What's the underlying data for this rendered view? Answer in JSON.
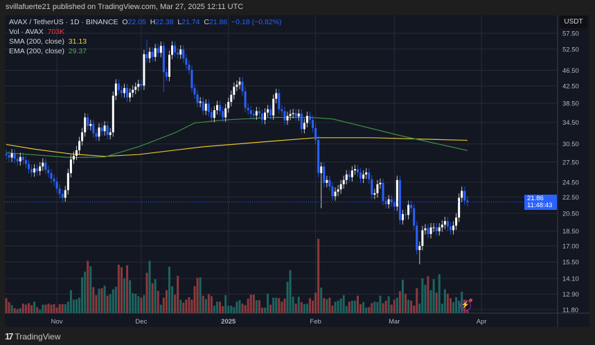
{
  "header": {
    "published": "svillafuerte21 published on TradingView.com, Mar 27, 2025 12:11 UTC"
  },
  "legend": {
    "symbol": "AVAX / TetherUS · 1D · BINANCE",
    "o_label": "O",
    "o": "22.05",
    "h_label": "H",
    "h": "22.38",
    "l_label": "L",
    "l": "21.74",
    "c_label": "C",
    "c": "21.86",
    "change": "−0.18 (−0.82%)",
    "vol_label": "Vol · AVAX",
    "vol": "703K",
    "sma_label": "SMA (200, close)",
    "sma": "31.13",
    "ema_label": "EMA (200, close)",
    "ema": "29.37"
  },
  "price_axis": {
    "currency": "USDT",
    "current_price": "21.86",
    "countdown": "11:48:43"
  },
  "footer": {
    "brand": "TradingView"
  },
  "colors": {
    "up": "#ffffff",
    "down": "#2962ff",
    "vol_up": "#1d6560",
    "vol_down": "#8c3a3e",
    "sma": "#e8c62a",
    "ema": "#3d8f45",
    "background": "#131722",
    "grid": "#262b38"
  },
  "chart_data": {
    "type": "candlestick",
    "scale": "log",
    "ylim": [
      11.0,
      60.0
    ],
    "grid": true,
    "start_date": "2024-10-14",
    "end_date": "2025-03-27",
    "y_ticks": [
      "57.50",
      "52.50",
      "46.50",
      "42.50",
      "38.50",
      "34.50",
      "30.50",
      "27.50",
      "24.50",
      "22.50",
      "20.50",
      "18.50",
      "17.00",
      "15.50",
      "14.10",
      "12.90",
      "11.80"
    ],
    "x_ticks": [
      {
        "label": "Nov",
        "date": "2024-11-01"
      },
      {
        "label": "Dec",
        "date": "2024-12-01"
      },
      {
        "label": "2025",
        "date": "2025-01-01"
      },
      {
        "label": "Feb",
        "date": "2025-02-01"
      },
      {
        "label": "Mar",
        "date": "2025-03-01"
      },
      {
        "label": "Apr",
        "date": "2025-04-01"
      }
    ],
    "first_open": 28.8,
    "close": [
      28.6,
      28.2,
      28.9,
      28.0,
      27.6,
      28.3,
      27.8,
      27.2,
      26.4,
      25.9,
      26.5,
      26.1,
      26.8,
      27.4,
      26.3,
      25.8,
      25.0,
      24.6,
      23.6,
      22.9,
      22.4,
      23.4,
      25.8,
      27.9,
      28.5,
      29.4,
      31.0,
      32.6,
      35.5,
      33.8,
      34.2,
      32.4,
      31.8,
      33.5,
      32.8,
      33.9,
      32.1,
      32.6,
      40.2,
      43.1,
      41.5,
      40.8,
      42.0,
      39.8,
      40.9,
      41.6,
      42.3,
      43.0,
      42.6,
      51.0,
      49.8,
      51.7,
      50.2,
      52.8,
      51.4,
      53.5,
      46.0,
      44.8,
      50.8,
      53.6,
      51.5,
      50.9,
      52.4,
      49.8,
      48.0,
      46.6,
      42.0,
      40.5,
      38.6,
      38.9,
      36.9,
      38.4,
      36.6,
      35.4,
      37.0,
      38.1,
      36.8,
      35.5,
      37.4,
      38.8,
      40.4,
      42.3,
      42.8,
      43.6,
      41.2,
      37.5,
      37.0,
      36.2,
      35.9,
      36.8,
      36.3,
      35.0,
      36.5,
      37.2,
      35.9,
      39.5,
      40.8,
      37.2,
      36.8,
      34.9,
      35.8,
      36.2,
      36.4,
      35.7,
      36.3,
      33.2,
      34.4,
      35.8,
      35.0,
      33.4,
      31.2,
      25.8,
      26.8,
      24.4,
      24.8,
      23.9,
      22.6,
      23.2,
      23.5,
      24.2,
      24.8,
      25.6,
      25.2,
      26.2,
      26.4,
      25.9,
      25.0,
      25.6,
      25.9,
      24.9,
      22.8,
      23.0,
      24.2,
      24.4,
      22.0,
      21.6,
      22.2,
      21.8,
      21.3,
      24.8,
      19.7,
      20.4,
      20.3,
      21.5,
      21.1,
      19.1,
      16.6,
      17.0,
      18.6,
      18.8,
      18.2,
      18.9,
      18.9,
      18.5,
      18.9,
      19.2,
      19.6,
      19.0,
      18.6,
      19.1,
      20.0,
      22.4,
      23.3,
      22.05,
      21.86
    ],
    "wick_extremes": [
      {
        "date": "2025-02-03",
        "low": 21.1
      },
      {
        "date": "2025-03-10",
        "low": 15.3
      },
      {
        "date": "2024-12-09",
        "low": 41.0
      },
      {
        "date": "2024-12-03",
        "high": 55.5
      }
    ],
    "volume_millions": [
      3.0,
      2.2,
      1.6,
      1.0,
      0.8,
      1.0,
      1.9,
      1.7,
      2.0,
      1.6,
      2.3,
      1.2,
      0.7,
      1.7,
      1.7,
      1.9,
      1.7,
      1.8,
      1.1,
      1.8,
      1.8,
      1.8,
      2.3,
      4.6,
      2.7,
      2.8,
      3.1,
      7.2,
      8.3,
      10.5,
      9.4,
      5.2,
      3.6,
      4.9,
      5.0,
      5.5,
      3.5,
      3.8,
      4.8,
      5.3,
      9.7,
      9.2,
      7.0,
      9.6,
      6.6,
      4.0,
      3.9,
      3.4,
      3.1,
      3.6,
      8.1,
      10.5,
      6.0,
      6.8,
      4.5,
      1.7,
      3.1,
      4.6,
      9.3,
      5.4,
      3.7,
      7.5,
      2.7,
      2.1,
      2.7,
      3.2,
      2.7,
      5.4,
      7.1,
      7.2,
      3.5,
      2.8,
      3.8,
      3.4,
      1.5,
      2.3,
      2.3,
      1.4,
      3.6,
      1.5,
      1.5,
      1.2,
      2.3,
      2.6,
      1.9,
      1.6,
      2.9,
      3.7,
      3.7,
      2.6,
      2.6,
      1.1,
      1.1,
      3.9,
      1.7,
      3.1,
      3.1,
      3.0,
      2.3,
      2.9,
      6.3,
      8.6,
      3.3,
      1.9,
      3.3,
      2.2,
      1.8,
      1.9,
      3.0,
      2.5,
      4.1,
      14.9,
      5.1,
      3.0,
      2.8,
      3.1,
      1.5,
      2.3,
      2.5,
      2.9,
      3.6,
      1.4,
      2.3,
      2.5,
      2.5,
      3.5,
      1.8,
      2.2,
      1.1,
      1.2,
      2.0,
      2.3,
      2.2,
      3.5,
      2.0,
      2.5,
      3.4,
      1.7,
      2.7,
      3.1,
      4.4,
      6.7,
      3.9,
      2.7,
      2.5,
      1.5,
      5.0,
      1.9,
      7.0,
      5.7,
      7.4,
      4.6,
      6.8,
      4.1,
      7.8,
      1.9,
      4.8,
      3.9,
      3.0,
      2.2,
      3.2,
      2.5,
      4.3,
      2.7,
      0.7
    ],
    "series": [
      {
        "name": "SMA (200, close)",
        "points": [
          [
            "2024-10-14",
            30.4
          ],
          [
            "2024-10-24",
            29.6
          ],
          [
            "2024-11-06",
            28.8
          ],
          [
            "2024-11-18",
            28.4
          ],
          [
            "2024-11-30",
            28.7
          ],
          [
            "2024-12-23",
            30.0
          ],
          [
            "2025-01-17",
            31.0
          ],
          [
            "2025-02-01",
            31.6
          ],
          [
            "2025-02-21",
            31.6
          ],
          [
            "2025-03-27",
            31.13
          ]
        ]
      },
      {
        "name": "EMA (200, close)",
        "points": [
          [
            "2024-10-14",
            29.0
          ],
          [
            "2024-11-06",
            28.2
          ],
          [
            "2024-11-18",
            28.3
          ],
          [
            "2024-11-30",
            30.0
          ],
          [
            "2024-12-13",
            32.5
          ],
          [
            "2024-12-20",
            34.4
          ],
          [
            "2024-12-31",
            35.0
          ],
          [
            "2025-01-17",
            35.5
          ],
          [
            "2025-01-30",
            35.5
          ],
          [
            "2025-02-07",
            35.2
          ],
          [
            "2025-03-03",
            32.0
          ],
          [
            "2025-03-27",
            29.37
          ]
        ]
      }
    ]
  }
}
